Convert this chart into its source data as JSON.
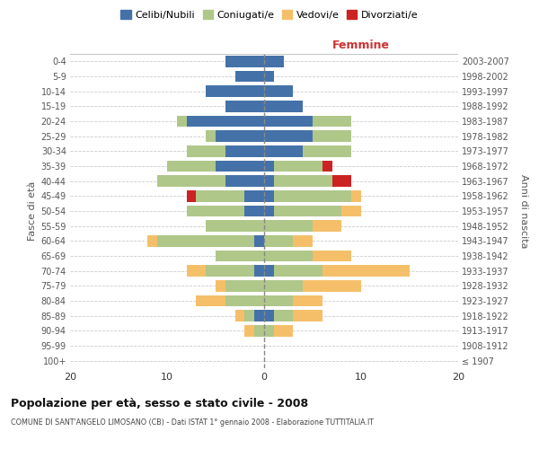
{
  "age_groups": [
    "100+",
    "95-99",
    "90-94",
    "85-89",
    "80-84",
    "75-79",
    "70-74",
    "65-69",
    "60-64",
    "55-59",
    "50-54",
    "45-49",
    "40-44",
    "35-39",
    "30-34",
    "25-29",
    "20-24",
    "15-19",
    "10-14",
    "5-9",
    "0-4"
  ],
  "birth_years": [
    "≤ 1907",
    "1908-1912",
    "1913-1917",
    "1918-1922",
    "1923-1927",
    "1928-1932",
    "1933-1937",
    "1938-1942",
    "1943-1947",
    "1948-1952",
    "1953-1957",
    "1958-1962",
    "1963-1967",
    "1968-1972",
    "1973-1977",
    "1978-1982",
    "1983-1987",
    "1988-1992",
    "1993-1997",
    "1998-2002",
    "2003-2007"
  ],
  "male": {
    "celibi": [
      0,
      0,
      0,
      1,
      0,
      0,
      1,
      0,
      1,
      0,
      2,
      2,
      4,
      5,
      4,
      5,
      8,
      4,
      6,
      3,
      4
    ],
    "coniugati": [
      0,
      0,
      1,
      1,
      4,
      4,
      5,
      5,
      10,
      6,
      6,
      5,
      7,
      5,
      4,
      1,
      1,
      0,
      0,
      0,
      0
    ],
    "vedovi": [
      0,
      0,
      1,
      1,
      3,
      1,
      2,
      0,
      1,
      0,
      0,
      0,
      0,
      0,
      0,
      0,
      0,
      0,
      0,
      0,
      0
    ],
    "divorziati": [
      0,
      0,
      0,
      0,
      0,
      0,
      0,
      0,
      0,
      0,
      0,
      1,
      0,
      0,
      0,
      0,
      0,
      0,
      0,
      0,
      0
    ]
  },
  "female": {
    "nubili": [
      0,
      0,
      0,
      1,
      0,
      0,
      1,
      0,
      0,
      0,
      1,
      1,
      1,
      1,
      4,
      5,
      5,
      4,
      3,
      1,
      2
    ],
    "coniugate": [
      0,
      0,
      1,
      2,
      3,
      4,
      5,
      5,
      3,
      5,
      7,
      8,
      6,
      5,
      5,
      4,
      4,
      0,
      0,
      0,
      0
    ],
    "vedove": [
      0,
      0,
      2,
      3,
      3,
      6,
      9,
      4,
      2,
      3,
      2,
      1,
      0,
      0,
      0,
      0,
      0,
      0,
      0,
      0,
      0
    ],
    "divorziate": [
      0,
      0,
      0,
      0,
      0,
      0,
      0,
      0,
      0,
      0,
      0,
      0,
      2,
      1,
      0,
      0,
      0,
      0,
      0,
      0,
      0
    ]
  },
  "colors": {
    "celibi_nubili": "#4472a8",
    "coniugati": "#afc789",
    "vedovi": "#f5bf6a",
    "divorziati": "#cc2222"
  },
  "xlim": 20,
  "title": "Popolazione per età, sesso e stato civile - 2008",
  "subtitle": "COMUNE DI SANT'ANGELO LIMOSANO (CB) - Dati ISTAT 1° gennaio 2008 - Elaborazione TUTTITALIA.IT",
  "ylabel_left": "Fasce di età",
  "ylabel_right": "Anni di nascita",
  "xlabel_right": "Femmine",
  "bg_color": "#ffffff",
  "grid_color": "#cccccc",
  "legend_labels": [
    "Celibi/Nubili",
    "Coniugati/e",
    "Vedovi/e",
    "Divorziati/e"
  ],
  "bar_height": 0.75
}
